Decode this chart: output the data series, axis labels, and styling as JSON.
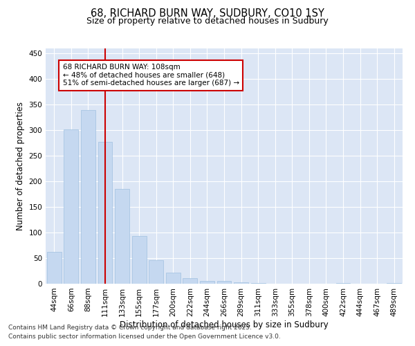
{
  "title1": "68, RICHARD BURN WAY, SUDBURY, CO10 1SY",
  "title2": "Size of property relative to detached houses in Sudbury",
  "xlabel": "Distribution of detached houses by size in Sudbury",
  "ylabel": "Number of detached properties",
  "categories": [
    "44sqm",
    "66sqm",
    "88sqm",
    "111sqm",
    "133sqm",
    "155sqm",
    "177sqm",
    "200sqm",
    "222sqm",
    "244sqm",
    "266sqm",
    "289sqm",
    "311sqm",
    "333sqm",
    "355sqm",
    "378sqm",
    "400sqm",
    "422sqm",
    "444sqm",
    "467sqm",
    "489sqm"
  ],
  "values": [
    62,
    302,
    340,
    278,
    185,
    93,
    46,
    22,
    11,
    6,
    5,
    3,
    2,
    0,
    0,
    0,
    0,
    1,
    0,
    0,
    2
  ],
  "bar_color": "#c5d8f0",
  "bar_edge_color": "#a0c0e0",
  "vline_x": 3,
  "vline_color": "#cc0000",
  "annotation_text": "68 RICHARD BURN WAY: 108sqm\n← 48% of detached houses are smaller (648)\n51% of semi-detached houses are larger (687) →",
  "annotation_box_facecolor": "#ffffff",
  "annotation_box_edgecolor": "#cc0000",
  "ylim": [
    0,
    460
  ],
  "yticks": [
    0,
    50,
    100,
    150,
    200,
    250,
    300,
    350,
    400,
    450
  ],
  "plot_bg_color": "#dce6f5",
  "fig_bg_color": "#ffffff",
  "grid_color": "#ffffff",
  "footer1": "Contains HM Land Registry data © Crown copyright and database right 2025.",
  "footer2": "Contains public sector information licensed under the Open Government Licence v3.0.",
  "title1_fontsize": 10.5,
  "title2_fontsize": 9,
  "axis_label_fontsize": 8.5,
  "tick_fontsize": 7.5,
  "footer_fontsize": 6.5,
  "ann_fontsize": 7.5
}
